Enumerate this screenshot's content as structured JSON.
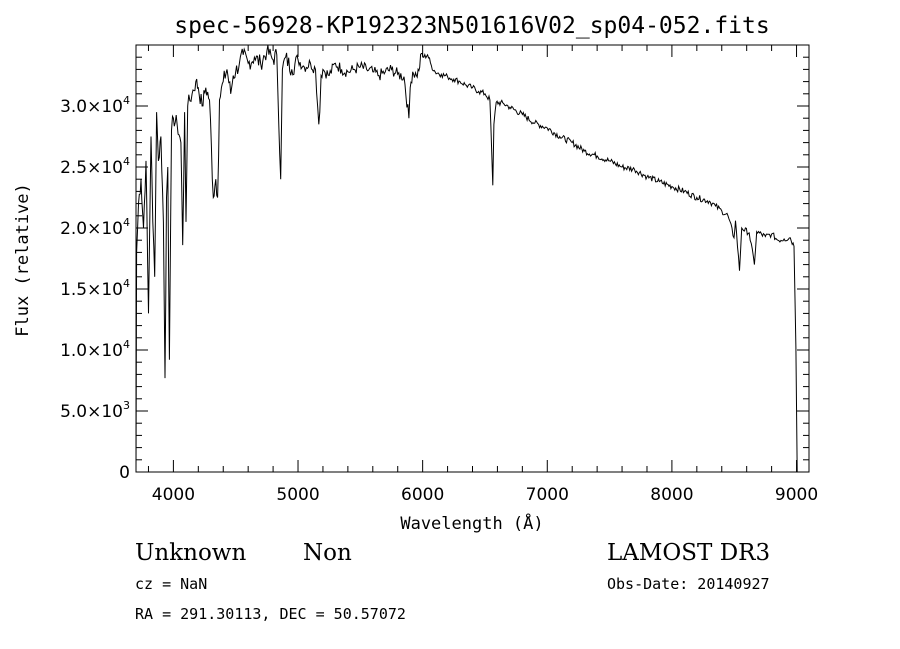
{
  "chart_data": {
    "type": "line",
    "title": "spec-56928-KP192323N501616V02_sp04-052.fits",
    "xlabel": "Wavelength (Å)",
    "ylabel": "Flux (relative)",
    "xlim": [
      3700,
      9100
    ],
    "ylim": [
      0,
      35000
    ],
    "grid": false,
    "legend": "none",
    "x_ticks": [
      4000,
      5000,
      6000,
      7000,
      8000,
      9000
    ],
    "y_ticks": [
      {
        "value": 0,
        "mantissa": "0",
        "exp": ""
      },
      {
        "value": 5000,
        "mantissa": "5.0×10",
        "exp": "3"
      },
      {
        "value": 10000,
        "mantissa": "1.0×10",
        "exp": "4"
      },
      {
        "value": 15000,
        "mantissa": "1.5×10",
        "exp": "4"
      },
      {
        "value": 20000,
        "mantissa": "2.0×10",
        "exp": "4"
      },
      {
        "value": 25000,
        "mantissa": "2.5×10",
        "exp": "4"
      },
      {
        "value": 30000,
        "mantissa": "3.0×10",
        "exp": "4"
      }
    ],
    "series": [
      {
        "values": [
          [
            3700,
            0
          ],
          [
            3705,
            18000
          ],
          [
            3720,
            22000
          ],
          [
            3740,
            24000
          ],
          [
            3760,
            20000
          ],
          [
            3780,
            25500
          ],
          [
            3800,
            13000
          ],
          [
            3820,
            27500
          ],
          [
            3835,
            20500
          ],
          [
            3850,
            16000
          ],
          [
            3865,
            29500
          ],
          [
            3880,
            25500
          ],
          [
            3900,
            27500
          ],
          [
            3920,
            20500
          ],
          [
            3933,
            7700
          ],
          [
            3945,
            22500
          ],
          [
            3955,
            25000
          ],
          [
            3968,
            9200
          ],
          [
            3985,
            28000
          ],
          [
            4000,
            29000
          ],
          [
            4030,
            28500
          ],
          [
            4060,
            27000
          ],
          [
            4075,
            18600
          ],
          [
            4090,
            29500
          ],
          [
            4101,
            20500
          ],
          [
            4115,
            30000
          ],
          [
            4150,
            31000
          ],
          [
            4180,
            32000
          ],
          [
            4200,
            31500
          ],
          [
            4230,
            30000
          ],
          [
            4260,
            31500
          ],
          [
            4290,
            30500
          ],
          [
            4320,
            22500
          ],
          [
            4340,
            24000
          ],
          [
            4355,
            22500
          ],
          [
            4370,
            30500
          ],
          [
            4400,
            32000
          ],
          [
            4430,
            33000
          ],
          [
            4460,
            31000
          ],
          [
            4480,
            32500
          ],
          [
            4500,
            32800
          ],
          [
            4530,
            33500
          ],
          [
            4560,
            34200
          ],
          [
            4600,
            33500
          ],
          [
            4650,
            34000
          ],
          [
            4700,
            33500
          ],
          [
            4750,
            34500
          ],
          [
            4800,
            33800
          ],
          [
            4830,
            34200
          ],
          [
            4861,
            24000
          ],
          [
            4875,
            33000
          ],
          [
            4900,
            34000
          ],
          [
            4950,
            33000
          ],
          [
            5000,
            33800
          ],
          [
            5050,
            33200
          ],
          [
            5100,
            33500
          ],
          [
            5140,
            33000
          ],
          [
            5167,
            28500
          ],
          [
            5175,
            29500
          ],
          [
            5185,
            32500
          ],
          [
            5200,
            33000
          ],
          [
            5250,
            32500
          ],
          [
            5300,
            33500
          ],
          [
            5350,
            33000
          ],
          [
            5400,
            32800
          ],
          [
            5450,
            33000
          ],
          [
            5500,
            33200
          ],
          [
            5550,
            33000
          ],
          [
            5600,
            32800
          ],
          [
            5650,
            32500
          ],
          [
            5700,
            32800
          ],
          [
            5750,
            33000
          ],
          [
            5800,
            32600
          ],
          [
            5850,
            32400
          ],
          [
            5890,
            29000
          ],
          [
            5900,
            31500
          ],
          [
            5920,
            32800
          ],
          [
            5950,
            32500
          ],
          [
            5970,
            32900
          ],
          [
            5990,
            34300
          ],
          [
            6010,
            34000
          ],
          [
            6040,
            34200
          ],
          [
            6070,
            33300
          ],
          [
            6100,
            32800
          ],
          [
            6150,
            32600
          ],
          [
            6200,
            32400
          ],
          [
            6250,
            32200
          ],
          [
            6300,
            32000
          ],
          [
            6350,
            31700
          ],
          [
            6400,
            31500
          ],
          [
            6450,
            31200
          ],
          [
            6500,
            31000
          ],
          [
            6540,
            30500
          ],
          [
            6555,
            26000
          ],
          [
            6563,
            23500
          ],
          [
            6572,
            28500
          ],
          [
            6590,
            30300
          ],
          [
            6650,
            30200
          ],
          [
            6700,
            29900
          ],
          [
            6800,
            29300
          ],
          [
            6900,
            28600
          ],
          [
            7000,
            28200
          ],
          [
            7100,
            27500
          ],
          [
            7200,
            27000
          ],
          [
            7300,
            26300
          ],
          [
            7400,
            25900
          ],
          [
            7500,
            25500
          ],
          [
            7600,
            25000
          ],
          [
            7700,
            24800
          ],
          [
            7800,
            24200
          ],
          [
            7900,
            23800
          ],
          [
            8000,
            23400
          ],
          [
            8100,
            23000
          ],
          [
            8200,
            22500
          ],
          [
            8300,
            22200
          ],
          [
            8350,
            21800
          ],
          [
            8400,
            21400
          ],
          [
            8450,
            21000
          ],
          [
            8498,
            19200
          ],
          [
            8510,
            20600
          ],
          [
            8542,
            16500
          ],
          [
            8560,
            20000
          ],
          [
            8620,
            19600
          ],
          [
            8662,
            17000
          ],
          [
            8680,
            19700
          ],
          [
            8750,
            19300
          ],
          [
            8800,
            19500
          ],
          [
            8850,
            19000
          ],
          [
            8900,
            19100
          ],
          [
            8950,
            19200
          ],
          [
            8980,
            18500
          ],
          [
            8995,
            10200
          ],
          [
            9005,
            0
          ]
        ]
      }
    ]
  },
  "annotations": {
    "object_class": "Unknown",
    "subclass": "Non",
    "survey": "LAMOST DR3",
    "cz": "cz = NaN",
    "obs_date": "Obs-Date: 20140927",
    "coords": "RA = 291.30113, DEC =  50.57072"
  }
}
